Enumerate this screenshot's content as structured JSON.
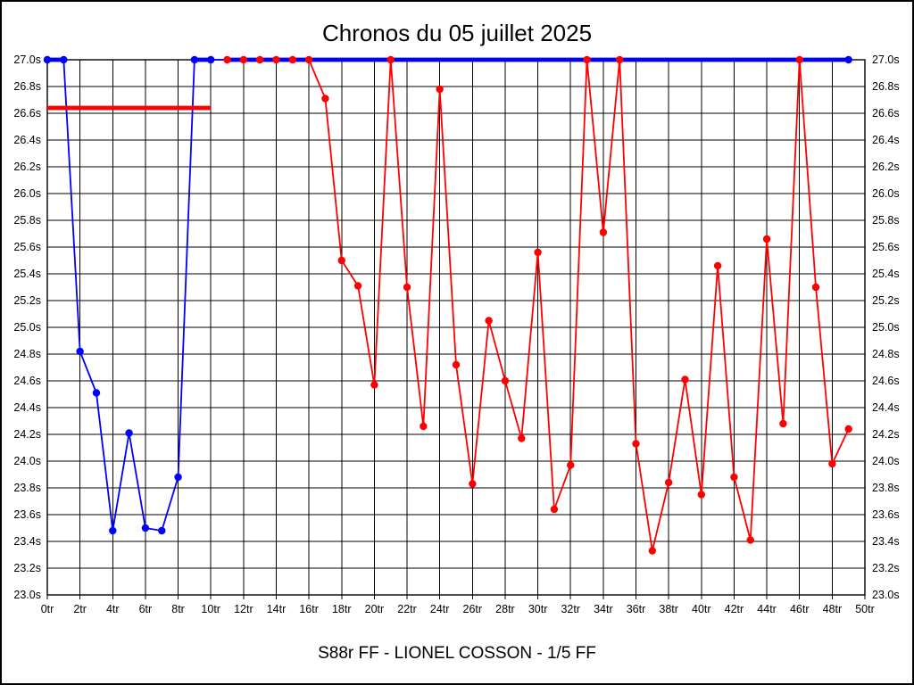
{
  "chart_data": {
    "type": "line",
    "title": "Chronos du 05 juillet 2025",
    "footer": "S88r FF - LIONEL COSSON - 1/5 FF",
    "x_unit": "tr",
    "y_unit": "s",
    "xlim": [
      0,
      50
    ],
    "ylim": [
      23.0,
      27.0
    ],
    "grid": true,
    "grid_color": "#000000",
    "x_ticks": [
      {
        "value": 0,
        "label": "0tr"
      },
      {
        "value": 2,
        "label": "2tr"
      },
      {
        "value": 4,
        "label": "4tr"
      },
      {
        "value": 6,
        "label": "6tr"
      },
      {
        "value": 8,
        "label": "8tr"
      },
      {
        "value": 10,
        "label": "10tr"
      },
      {
        "value": 12,
        "label": "12tr"
      },
      {
        "value": 14,
        "label": "14tr"
      },
      {
        "value": 16,
        "label": "16tr"
      },
      {
        "value": 18,
        "label": "18tr"
      },
      {
        "value": 20,
        "label": "20tr"
      },
      {
        "value": 22,
        "label": "22tr"
      },
      {
        "value": 24,
        "label": "24tr"
      },
      {
        "value": 26,
        "label": "26tr"
      },
      {
        "value": 28,
        "label": "28tr"
      },
      {
        "value": 30,
        "label": "30tr"
      },
      {
        "value": 32,
        "label": "32tr"
      },
      {
        "value": 34,
        "label": "34tr"
      },
      {
        "value": 36,
        "label": "36tr"
      },
      {
        "value": 38,
        "label": "38tr"
      },
      {
        "value": 40,
        "label": "40tr"
      },
      {
        "value": 42,
        "label": "42tr"
      },
      {
        "value": 44,
        "label": "44tr"
      },
      {
        "value": 46,
        "label": "46tr"
      },
      {
        "value": 48,
        "label": "48tr"
      },
      {
        "value": 50,
        "label": "50tr"
      }
    ],
    "y_ticks": [
      {
        "value": 27.0,
        "label": "27.0s"
      },
      {
        "value": 26.8,
        "label": "26.8s"
      },
      {
        "value": 26.6,
        "label": "26.6s"
      },
      {
        "value": 26.4,
        "label": "26.4s"
      },
      {
        "value": 26.2,
        "label": "26.2s"
      },
      {
        "value": 26.0,
        "label": "26.0s"
      },
      {
        "value": 25.8,
        "label": "25.8s"
      },
      {
        "value": 25.6,
        "label": "25.6s"
      },
      {
        "value": 25.4,
        "label": "25.4s"
      },
      {
        "value": 25.2,
        "label": "25.2s"
      },
      {
        "value": 25.0,
        "label": "25.0s"
      },
      {
        "value": 24.8,
        "label": "24.8s"
      },
      {
        "value": 24.6,
        "label": "24.6s"
      },
      {
        "value": 24.4,
        "label": "24.4s"
      },
      {
        "value": 24.2,
        "label": "24.2s"
      },
      {
        "value": 24.0,
        "label": "24.0s"
      },
      {
        "value": 23.8,
        "label": "23.8s"
      },
      {
        "value": 23.6,
        "label": "23.6s"
      },
      {
        "value": 23.4,
        "label": "23.4s"
      },
      {
        "value": 23.2,
        "label": "23.2s"
      },
      {
        "value": 23.0,
        "label": "23.0s"
      }
    ],
    "series": [
      {
        "name": "blue-lap-times",
        "color": "#0000ff",
        "x_start": 0,
        "values": [
          27.0,
          27.0,
          24.82,
          24.51,
          23.48,
          24.21,
          23.5,
          23.48,
          23.88,
          27.0,
          27.0,
          27.0,
          27.0,
          27.0,
          27.0,
          27.0,
          27.0,
          27.0,
          27.0,
          27.0,
          27.0,
          27.0,
          27.0,
          27.0,
          27.0,
          27.0,
          27.0,
          27.0,
          27.0,
          27.0,
          27.0,
          27.0,
          27.0,
          27.0,
          27.0,
          27.0,
          27.0,
          27.0,
          27.0,
          27.0,
          27.0,
          27.0,
          27.0,
          27.0,
          27.0,
          27.0,
          27.0,
          27.0,
          27.0,
          27.0
        ],
        "marker_x": [
          0,
          1,
          2,
          3,
          4,
          5,
          6,
          7,
          8,
          9,
          10,
          49
        ],
        "thick_runs": [
          {
            "x_from": 0,
            "x_to": 1,
            "y": 27.0
          },
          {
            "x_from": 9,
            "x_to": 10,
            "y": 27.0
          },
          {
            "x_from": 11,
            "x_to": 49,
            "y": 27.0
          }
        ]
      },
      {
        "name": "red-lap-times",
        "color": "#ff0000",
        "x_start": 11,
        "values": [
          27.0,
          27.0,
          27.0,
          27.0,
          27.0,
          27.0,
          26.71,
          25.5,
          25.31,
          24.57,
          27.0,
          25.3,
          24.26,
          26.78,
          24.72,
          23.83,
          25.05,
          24.6,
          24.17,
          25.56,
          23.64,
          23.97,
          27.0,
          25.71,
          27.0,
          24.13,
          23.33,
          23.84,
          24.61,
          23.75,
          25.46,
          23.88,
          23.41,
          25.66,
          24.28,
          27.0,
          25.3,
          23.98,
          24.24
        ],
        "thick_runs": []
      }
    ],
    "reference_line": {
      "color": "#ff0000",
      "y": 26.64,
      "x_from": 0,
      "x_to": 10
    }
  }
}
